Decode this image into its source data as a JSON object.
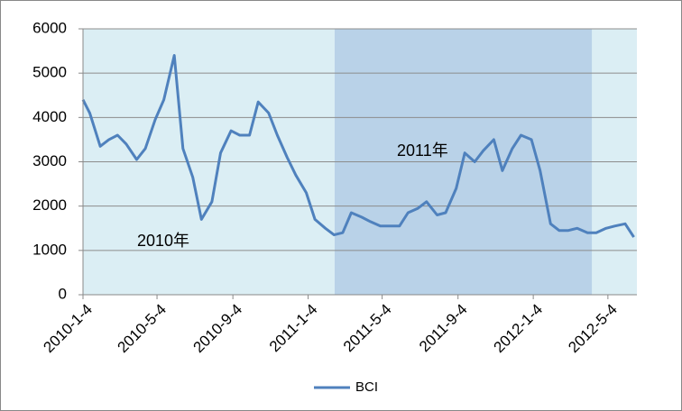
{
  "chart_data": {
    "type": "line",
    "x": [
      "2010-1-4",
      "2010-1-15",
      "2010-2-1",
      "2010-2-15",
      "2010-3-1",
      "2010-3-15",
      "2010-4-1",
      "2010-4-15",
      "2010-5-1",
      "2010-5-15",
      "2010-6-1",
      "2010-6-15",
      "2010-7-1",
      "2010-7-15",
      "2010-8-1",
      "2010-8-15",
      "2010-9-1",
      "2010-9-15",
      "2010-10-1",
      "2010-10-15",
      "2010-11-1",
      "2010-11-15",
      "2010-12-1",
      "2010-12-15",
      "2011-1-1",
      "2011-1-15",
      "2011-2-1",
      "2011-2-15",
      "2011-3-1",
      "2011-3-15",
      "2011-4-1",
      "2011-4-15",
      "2011-5-1",
      "2011-5-15",
      "2011-6-1",
      "2011-6-15",
      "2011-7-1",
      "2011-7-15",
      "2011-8-1",
      "2011-8-15",
      "2011-9-1",
      "2011-9-15",
      "2011-10-1",
      "2011-10-15",
      "2011-11-1",
      "2011-11-15",
      "2011-12-1",
      "2011-12-15",
      "2012-1-1",
      "2012-1-15",
      "2012-2-1",
      "2012-2-15",
      "2012-3-1",
      "2012-3-15",
      "2012-4-1",
      "2012-4-15",
      "2012-5-1",
      "2012-5-15",
      "2012-6-1",
      "2012-6-15"
    ],
    "series": [
      {
        "name": "BCI",
        "color": "#4f81bd",
        "values": [
          4400,
          4100,
          3350,
          3500,
          3600,
          3400,
          3050,
          3300,
          3950,
          4400,
          5400,
          3300,
          2650,
          1700,
          2100,
          3200,
          3700,
          3600,
          3600,
          4350,
          4100,
          3600,
          3100,
          2700,
          2300,
          1700,
          1500,
          1350,
          1400,
          1850,
          1750,
          1650,
          1550,
          1550,
          1550,
          1850,
          1950,
          2100,
          1800,
          1850,
          2400,
          3200,
          3000,
          3250,
          3500,
          2800,
          3300,
          3600,
          3500,
          2800,
          1600,
          1450,
          1450,
          1500,
          1400,
          1400,
          1500,
          1550,
          1600,
          1300
        ]
      }
    ],
    "xlim": [
      "2010-1-4",
      "2012-6-20"
    ],
    "xticks": [
      "2010-1-4",
      "2010-5-4",
      "2010-9-4",
      "2011-1-4",
      "2011-5-4",
      "2011-9-4",
      "2012-1-4",
      "2012-5-4"
    ],
    "ylim": [
      0,
      6000
    ],
    "yticks": [
      0,
      1000,
      2000,
      3000,
      4000,
      5000,
      6000
    ],
    "grid": true,
    "plot_background": "#dbeef4",
    "bands": [
      {
        "start": "2011-2-16",
        "end": "2012-4-8",
        "color": "#b9d2e8"
      }
    ],
    "annotations": [
      "2010年",
      "2011年"
    ],
    "legend": "bottom"
  }
}
